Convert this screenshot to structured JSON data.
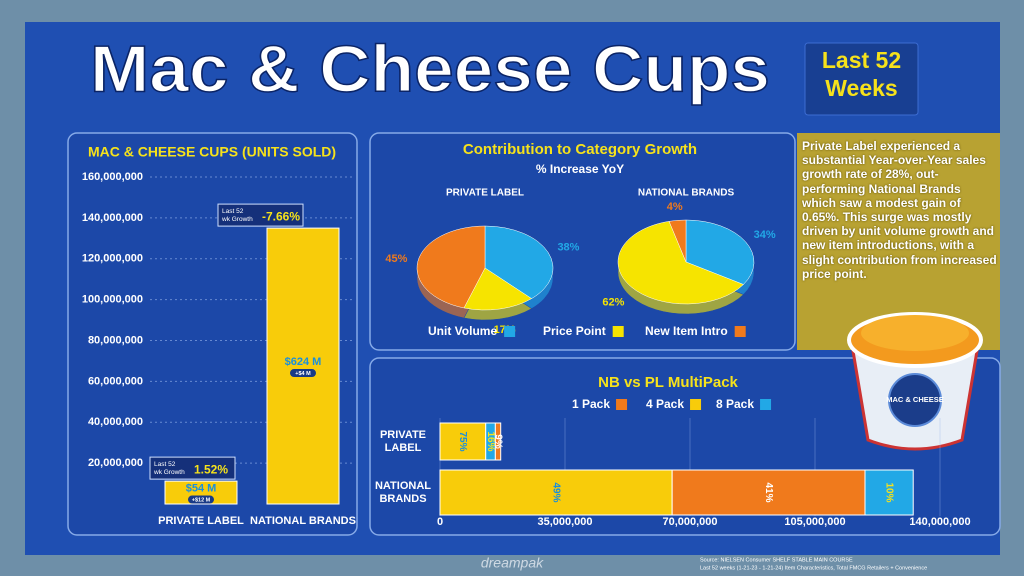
{
  "header": {
    "title": "Mac & Cheese Cups",
    "badge": "Last 52 Weeks"
  },
  "chart_data": [
    {
      "type": "bar",
      "title": "MAC & CHEESE CUPS (UNITS SOLD)",
      "categories": [
        "PRIVATE LABEL",
        "NATIONAL BRANDS"
      ],
      "values": [
        11200000,
        135000000
      ],
      "color": "#f8cc0a",
      "ylim": [
        0,
        160000000
      ],
      "yticks": [
        {
          "value": 20000000,
          "label": "20,000,000"
        },
        {
          "value": 40000000,
          "label": "40,000,000"
        },
        {
          "value": 60000000,
          "label": "60,000,000"
        },
        {
          "value": 80000000,
          "label": "80,000,000"
        },
        {
          "value": 100000000,
          "label": "100,000,000"
        },
        {
          "value": 120000000,
          "label": "120,000,000"
        },
        {
          "value": 140000000,
          "label": "140,000,000"
        },
        {
          "value": 160000000,
          "label": "160,000,000"
        }
      ],
      "grid": true,
      "notes": [
        {
          "label": [
            "Last 52",
            "wk Growth"
          ],
          "growth": "1.52%",
          "sales": "$54 M",
          "sales_change": "+$12 M"
        },
        {
          "label": [
            "Last 52",
            "wk Growth"
          ],
          "growth": "-7.66%",
          "sales": "$624 M",
          "sales_change": "+$4 M"
        }
      ]
    },
    {
      "type": "pie",
      "title": "Contribution to Category Growth",
      "subtitle": "% Increase YoY",
      "categories": [
        "Unit Volume",
        "Price Point",
        "New Item Intro"
      ],
      "colors": [
        "#22a8e6",
        "#f6e400",
        "#f07a1c"
      ],
      "pies": [
        {
          "name": "PRIVATE LABEL",
          "values": [
            38,
            17,
            45
          ],
          "value_labels": [
            "38%",
            "17%",
            "45%"
          ]
        },
        {
          "name": "NATIONAL BRANDS",
          "values": [
            34,
            62,
            4
          ],
          "value_labels": [
            "34%",
            "62%",
            "4%"
          ]
        }
      ]
    },
    {
      "type": "stacked-bar",
      "orientation": "horizontal",
      "title": "NB vs PL MultiPack",
      "categories": [
        "PRIVATE LABEL",
        "NATIONAL BRANDS"
      ],
      "series": [
        {
          "name": "1 Pack",
          "color": "#f07a1c",
          "values": [
            1500000,
            54000000
          ],
          "share_labels": [
            "9%",
            "41%"
          ]
        },
        {
          "name": "4 Pack",
          "color": "#f8cc0a",
          "values": [
            12800000,
            65000000
          ],
          "share_labels": [
            "75%",
            "49%"
          ]
        },
        {
          "name": "8 Pack",
          "color": "#22a8e6",
          "values": [
            2700000,
            13500000
          ],
          "share_labels": [
            "16%",
            "10%"
          ]
        }
      ],
      "stack_order": [
        [
          1,
          2,
          0
        ],
        [
          1,
          0,
          2
        ]
      ],
      "xlim": [
        0,
        140000000
      ],
      "xticks": [
        0,
        {
          "value": 35000000,
          "label": "35,000,000"
        },
        {
          "value": 70000000,
          "label": "70,000,000"
        },
        {
          "value": 105000000,
          "label": "105,000,000"
        },
        {
          "value": 140000000,
          "label": "140,000,000"
        }
      ],
      "grid": true
    }
  ],
  "summary": "Private Label experienced a substantial Year-over-Year sales growth rate of 28%, out-performing National Brands which saw a modest gain of 0.65%. This surge was mostly driven by unit volume growth and new item introductions, with a slight contribution from increased price point.",
  "product": {
    "label": "MAC & CHEESE"
  },
  "footer": {
    "source": [
      "Source: NIELSEN Consumer SHELF STABLE MAIN COURSE",
      "Last 52 weeks (1-21-23 - 1-21-24) Item Characteristics, Total FMCG Retailers + Convenience"
    ],
    "logo": "dreampak"
  }
}
